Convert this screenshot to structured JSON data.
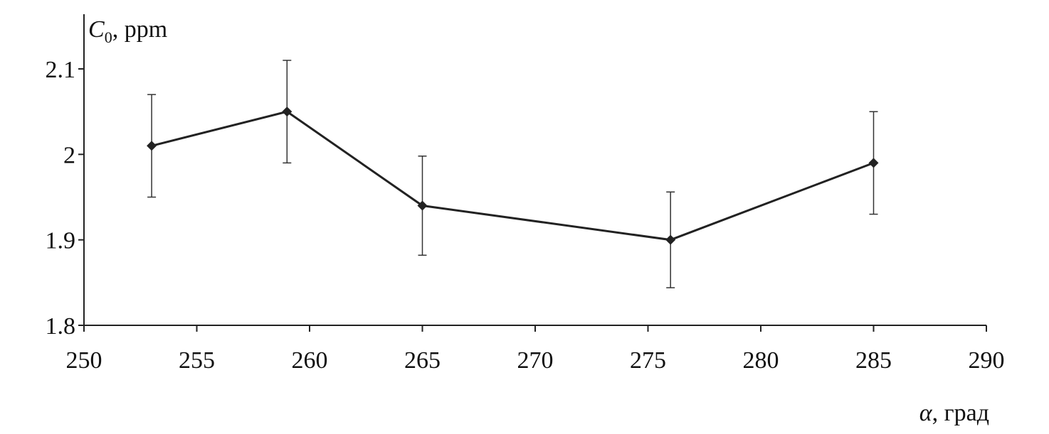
{
  "chart_data": {
    "type": "line",
    "title": "",
    "ylabel": {
      "main": "C",
      "sub": "0",
      "rest": ", ppm"
    },
    "xlabel": {
      "symbol": "α",
      "rest": ", град"
    },
    "xlim": [
      250,
      290
    ],
    "ylim": [
      1.8,
      2.15
    ],
    "xticks": [
      250,
      255,
      260,
      265,
      270,
      275,
      280,
      285,
      290
    ],
    "yticks": [
      1.8,
      1.9,
      2,
      2.1
    ],
    "ytick_labels": [
      "1.8",
      "1.9",
      "2",
      "2.1"
    ],
    "grid": false,
    "marker": "diamond",
    "color": "#222222",
    "series": [
      {
        "x": [
          253,
          259,
          265,
          276,
          285
        ],
        "y": [
          2.01,
          2.05,
          1.94,
          1.9,
          1.99
        ],
        "error": [
          0.06,
          0.06,
          0.058,
          0.056,
          0.06
        ]
      }
    ]
  }
}
